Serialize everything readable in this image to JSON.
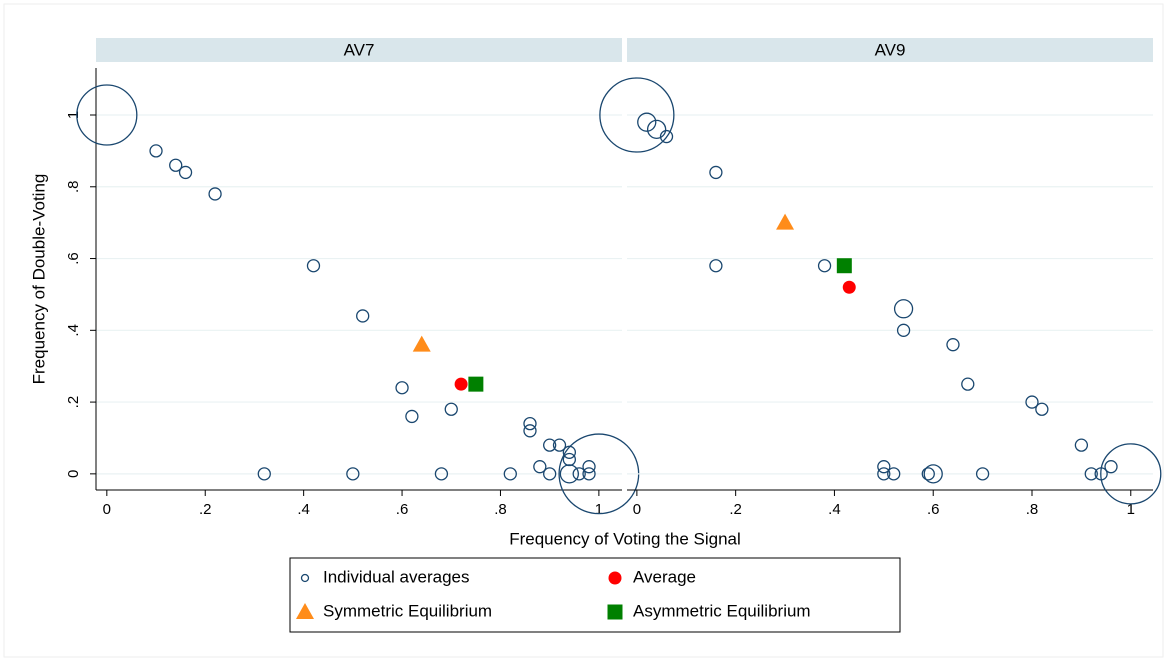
{
  "chart_data": {
    "type": "scatter",
    "x_label": "Frequency of Voting the Signal",
    "y_label": "Frequency of Double-Voting",
    "grid": true,
    "legend": [
      {
        "name": "Individual averages",
        "color": "#1a476f",
        "marker": "hollow-circle"
      },
      {
        "name": "Average",
        "color": "#ff0000",
        "marker": "circle"
      },
      {
        "name": "Symmetric Equilibrium",
        "color": "#ff8c1a",
        "marker": "triangle"
      },
      {
        "name": "Asymmetric Equilibrium",
        "color": "#008000",
        "marker": "square"
      }
    ],
    "panels": [
      {
        "title": "AV7",
        "xlim": [
          -0.022,
          1.047
        ],
        "ylim": [
          -0.045,
          1.131
        ],
        "xticks": [
          0,
          {
            "value": 0.2,
            "label": ".2"
          },
          {
            "value": 0.4,
            "label": ".4"
          },
          {
            "value": 0.6,
            "label": ".6"
          },
          {
            "value": 0.8,
            "label": ".8"
          },
          1
        ],
        "yticks": [
          0,
          {
            "value": 0.2,
            "label": ".2"
          },
          {
            "value": 0.4,
            "label": ".4"
          },
          {
            "value": 0.6,
            "label": ".6"
          },
          {
            "value": 0.8,
            "label": ".8"
          },
          1
        ],
        "series": [
          {
            "x": [
              0,
              0.1,
              0.14,
              0.16,
              0.22,
              0.42,
              0.52,
              0.6,
              0.62,
              0.7,
              0.32,
              0.5,
              0.68,
              0.82,
              0.86,
              0.86,
              0.9,
              0.92,
              0.94,
              0.94,
              0.88,
              0.9,
              0.94,
              0.96,
              0.98,
              0.98,
              1
            ],
            "y": [
              1,
              0.9,
              0.86,
              0.84,
              0.78,
              0.58,
              0.44,
              0.24,
              0.16,
              0.18,
              0,
              0,
              0,
              0,
              0.14,
              0.12,
              0.08,
              0.08,
              0.06,
              0.04,
              0.02,
              0,
              0,
              0,
              0.02,
              0,
              0
            ],
            "sizes": [
              25,
              1,
              1,
              1,
              1,
              1,
              1,
              1,
              1,
              1,
              1,
              1,
              1,
              1,
              1,
              1,
              1,
              1,
              1,
              1,
              1,
              1,
              2.25,
              1,
              1,
              1,
              44
            ]
          },
          {
            "x": [
              0.72
            ],
            "y": [
              0.25
            ]
          },
          {
            "x": [
              0.64
            ],
            "y": [
              0.36
            ]
          },
          {
            "x": [
              0.75
            ],
            "y": [
              0.25
            ]
          }
        ]
      },
      {
        "title": "AV9",
        "xlim": [
          -0.02,
          1.045
        ],
        "ylim": [
          -0.045,
          1.131
        ],
        "xticks": [
          0,
          {
            "value": 0.2,
            "label": ".2"
          },
          {
            "value": 0.4,
            "label": ".4"
          },
          {
            "value": 0.6,
            "label": ".6"
          },
          {
            "value": 0.8,
            "label": ".8"
          },
          1
        ],
        "yticks": [
          0,
          0.2,
          0.4,
          0.6,
          0.8,
          1
        ],
        "series": [
          {
            "x": [
              0,
              0.02,
              0.04,
              0.06,
              0.16,
              0.16,
              0.38,
              0.54,
              0.54,
              0.64,
              0.67,
              0.8,
              0.82,
              0.9,
              0.5,
              0.5,
              0.52,
              0.59,
              0.6,
              0.7,
              0.92,
              0.94,
              0.96,
              1
            ],
            "y": [
              1,
              0.98,
              0.96,
              0.94,
              0.84,
              0.58,
              0.58,
              0.46,
              0.4,
              0.36,
              0.25,
              0.2,
              0.18,
              0.08,
              0.02,
              0,
              0,
              0,
              0,
              0,
              0,
              0,
              0.02,
              0
            ],
            "sizes": [
              38,
              2.25,
              2.25,
              1,
              1,
              1,
              1,
              2.25,
              1,
              1,
              1,
              1,
              1,
              1,
              1,
              1,
              1,
              1,
              2.25,
              1,
              1,
              1,
              1,
              25
            ]
          },
          {
            "x": [
              0.43
            ],
            "y": [
              0.52
            ]
          },
          {
            "x": [
              0.3
            ],
            "y": [
              0.7
            ]
          },
          {
            "x": [
              0.42
            ],
            "y": [
              0.58
            ]
          }
        ]
      }
    ]
  }
}
